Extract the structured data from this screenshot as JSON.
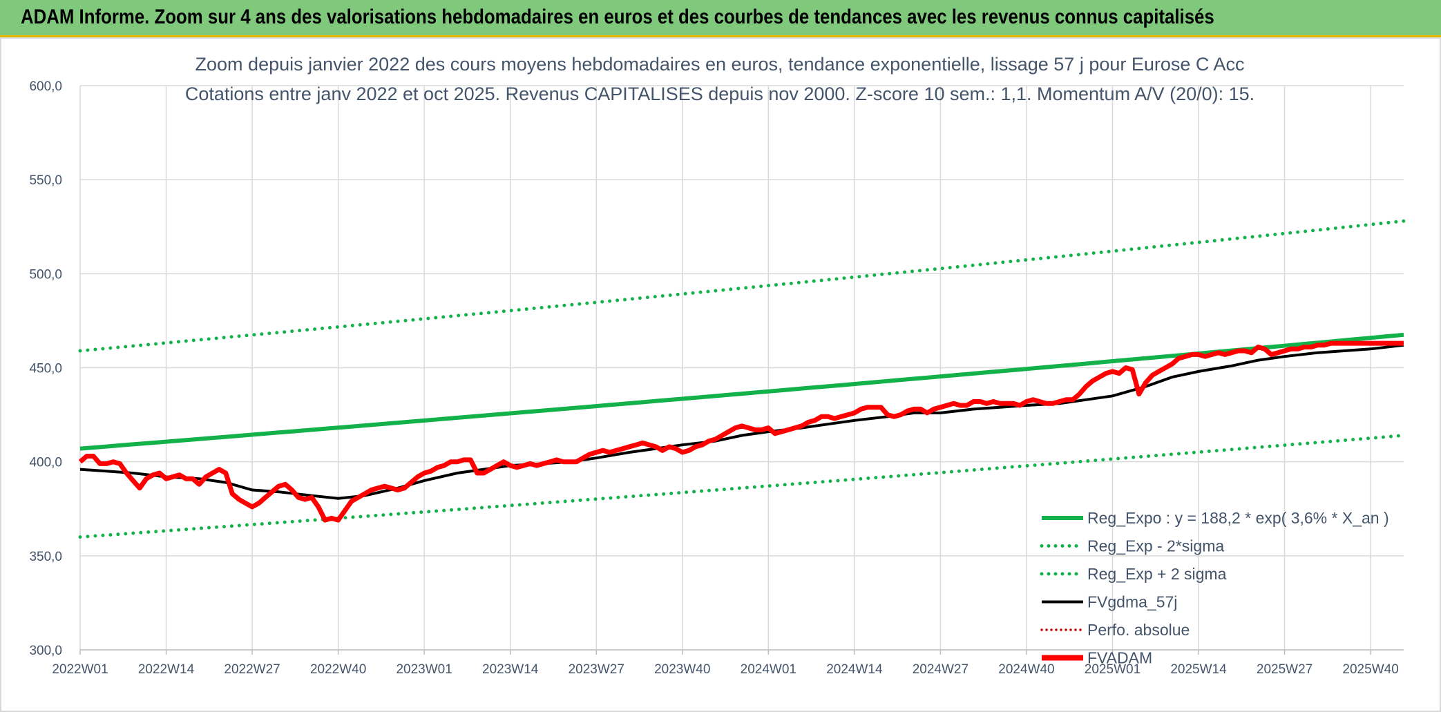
{
  "banner": {
    "title": "ADAM Informe. Zoom sur 4 ans des valorisations hebdomadaires en euros et des courbes de tendances avec les revenus connus capitalisés"
  },
  "colors": {
    "banner_bg": "#80c97c",
    "green": "#12b14a",
    "red": "#ff0000",
    "black": "#000000",
    "dark_red": "#c00000",
    "text": "#44546a",
    "grid": "#d9d9d9"
  },
  "chart_data": {
    "type": "line",
    "title": [
      "Zoom depuis janvier 2022 des cours moyens hebdomadaires en euros, tendance exponentielle, lissage 57 j pour Eurose C Acc",
      "Cotations entre janv 2022 et oct 2025. Revenus CAPITALISES depuis nov 2000. Z-score 10 sem.: 1,1. Momentum A/V (20/0): 15."
    ],
    "x_tick_labels": [
      "2022W01",
      "2022W14",
      "2022W27",
      "2022W40",
      "2023W01",
      "2023W14",
      "2023W27",
      "2023W40",
      "2024W01",
      "2024W14",
      "2024W27",
      "2024W40",
      "2025W01",
      "2025W14",
      "2025W27",
      "2025W40"
    ],
    "x_tick_index": [
      0,
      13,
      26,
      39,
      52,
      65,
      78,
      91,
      104,
      117,
      130,
      143,
      156,
      169,
      182,
      195
    ],
    "x_range": [
      0,
      200
    ],
    "ylim": [
      300,
      600
    ],
    "y_ticks": [
      300,
      350,
      400,
      450,
      500,
      550,
      600
    ],
    "y_tick_labels": [
      "300,0",
      "350,0",
      "400,0",
      "450,0",
      "500,0",
      "550,0",
      "600,0"
    ],
    "legend": [
      {
        "label": "Reg_Expo : y = 188,2 * exp( 3,6% *  X_an )",
        "style": "solid-thick",
        "color": "#12b14a"
      },
      {
        "label": "Reg_Exp - 2*sigma",
        "style": "dotted",
        "color": "#12b14a"
      },
      {
        "label": "Reg_Exp + 2 sigma",
        "style": "dotted",
        "color": "#12b14a"
      },
      {
        "label": "FVgdma_57j",
        "style": "solid",
        "color": "#000000"
      },
      {
        "label": "Perfo. absolue",
        "style": "dotted-thin",
        "color": "#c00000"
      },
      {
        "label": "FVADAM",
        "style": "solid-thick",
        "color": "#ff0000"
      }
    ],
    "series": [
      {
        "name": "Reg_Expo",
        "type": "exp",
        "start": 407,
        "end": 467.5,
        "x": [
          0,
          200
        ]
      },
      {
        "name": "Reg_Exp - 2*sigma",
        "type": "exp",
        "start": 360,
        "end": 414,
        "x": [
          0,
          200
        ]
      },
      {
        "name": "Reg_Exp + 2 sigma",
        "type": "exp",
        "start": 459,
        "end": 528,
        "x": [
          0,
          200
        ]
      },
      {
        "name": "FVgdma_57j",
        "x": [
          0,
          4,
          8,
          13,
          18,
          22,
          26,
          30,
          35,
          39,
          43,
          48,
          52,
          57,
          61,
          65,
          70,
          74,
          78,
          83,
          87,
          91,
          96,
          100,
          104,
          109,
          113,
          117,
          122,
          126,
          130,
          135,
          139,
          143,
          148,
          152,
          156,
          161,
          165,
          169,
          174,
          178,
          182,
          187,
          191,
          195,
          200
        ],
        "values": [
          396,
          395,
          394,
          392,
          391,
          389,
          385,
          384,
          382,
          380.5,
          382,
          386,
          390,
          394,
          396,
          398,
          399,
          400,
          402,
          405,
          407,
          409,
          411,
          414,
          416,
          418,
          420,
          422,
          424,
          426,
          426,
          428,
          429,
          430,
          431,
          433,
          435,
          440,
          445,
          448,
          451,
          454,
          456,
          458,
          459,
          460,
          462
        ]
      },
      {
        "name": "FVADAM",
        "x": [
          0,
          1,
          2,
          3,
          4,
          5,
          6,
          7,
          8,
          9,
          10,
          11,
          12,
          13,
          14,
          15,
          16,
          17,
          18,
          19,
          20,
          21,
          22,
          23,
          24,
          25,
          26,
          27,
          28,
          29,
          30,
          31,
          32,
          33,
          34,
          35,
          36,
          37,
          38,
          39,
          40,
          41,
          42,
          43,
          44,
          45,
          46,
          47,
          48,
          49,
          50,
          51,
          52,
          53,
          54,
          55,
          56,
          57,
          58,
          59,
          60,
          61,
          62,
          63,
          64,
          65,
          66,
          67,
          68,
          69,
          70,
          71,
          72,
          73,
          74,
          75,
          76,
          77,
          78,
          79,
          80,
          81,
          82,
          83,
          84,
          85,
          86,
          87,
          88,
          89,
          90,
          91,
          92,
          93,
          94,
          95,
          96,
          97,
          98,
          99,
          100,
          101,
          102,
          103,
          104,
          105,
          106,
          107,
          108,
          109,
          110,
          111,
          112,
          113,
          114,
          115,
          116,
          117,
          118,
          119,
          120,
          121,
          122,
          123,
          124,
          125,
          126,
          127,
          128,
          129,
          130,
          131,
          132,
          133,
          134,
          135,
          136,
          137,
          138,
          139,
          140,
          141,
          142,
          143,
          144,
          145,
          146,
          147,
          148,
          149,
          150,
          151,
          152,
          153,
          154,
          155,
          156,
          157,
          158,
          159,
          160,
          161,
          162,
          163,
          164,
          165,
          166,
          167,
          168,
          169,
          170,
          171,
          172,
          173,
          174,
          175,
          176,
          177,
          178,
          179,
          180,
          181,
          182,
          183,
          184,
          185,
          186,
          187,
          188,
          189,
          190,
          191,
          192,
          193,
          194,
          195,
          196,
          197,
          198,
          199,
          200
        ],
        "values": [
          400,
          403,
          403,
          399,
          399,
          400,
          399,
          394,
          390,
          386,
          391,
          393,
          394,
          391,
          392,
          393,
          391,
          391,
          388,
          392,
          394,
          396,
          394,
          383,
          380,
          378,
          376,
          378,
          381,
          384,
          387,
          388,
          385,
          381,
          380,
          381,
          376,
          369,
          370,
          369,
          374,
          379,
          381,
          383,
          385,
          386,
          387,
          386,
          385,
          386,
          389,
          392,
          394,
          395,
          397,
          398,
          400,
          400,
          401,
          401,
          394,
          394,
          396,
          398,
          400,
          398,
          397,
          398,
          399,
          398,
          399,
          400,
          401,
          400,
          400,
          400,
          402,
          404,
          405,
          406,
          405,
          406,
          407,
          408,
          409,
          410,
          409,
          408,
          406,
          408,
          407,
          405,
          406,
          408,
          409,
          411,
          412,
          414,
          416,
          418,
          419,
          418,
          417,
          417,
          418,
          415,
          416,
          417,
          418,
          419,
          421,
          422,
          424,
          424,
          423,
          424,
          425,
          426,
          428,
          429,
          429,
          429,
          425,
          424,
          425,
          427,
          428,
          428,
          426,
          428,
          429,
          430,
          431,
          430,
          430,
          432,
          432,
          431,
          432,
          431,
          431,
          431,
          430,
          432,
          433,
          432,
          431,
          431,
          432,
          433,
          433,
          436,
          440,
          443,
          445,
          447,
          448,
          447,
          450,
          449,
          436,
          442,
          446,
          448,
          450,
          452,
          455,
          456,
          457,
          457,
          456,
          457,
          458,
          457,
          458,
          459,
          459,
          458,
          461,
          460,
          457,
          458,
          459,
          460,
          460,
          461,
          461,
          462,
          462,
          463,
          463,
          463,
          463,
          463,
          463,
          463,
          463,
          463,
          463,
          463,
          463
        ]
      }
    ]
  }
}
